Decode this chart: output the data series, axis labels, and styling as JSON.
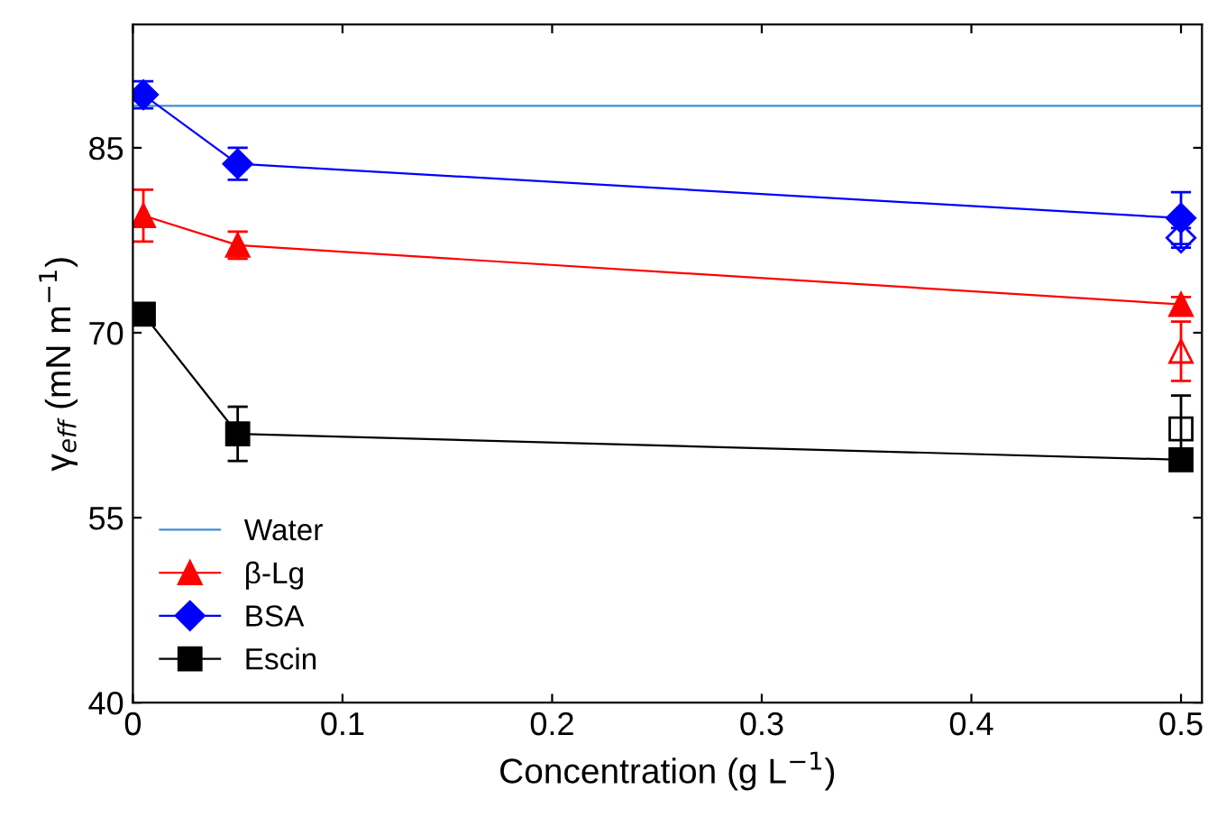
{
  "chart_data": {
    "type": "line",
    "xlabel": "Concentration (g L$^{−1}$)",
    "ylabel": "γ$_{eff}$ (mN m$^{−1}$)",
    "xlim": [
      0,
      0.51
    ],
    "ylim": [
      40,
      95
    ],
    "xticks": [
      0,
      0.1,
      0.2,
      0.3,
      0.4,
      0.5
    ],
    "yticks": [
      40,
      55,
      70,
      85
    ],
    "grid": false,
    "legend": "bottom left",
    "series": [
      {
        "name": "Water",
        "color": "#3d8fd6",
        "marker": "none",
        "x": [
          0,
          0.51
        ],
        "values": [
          88.4,
          88.4
        ]
      },
      {
        "name": "β-Lg",
        "color": "#ff0000",
        "marker": "triangle",
        "x": [
          0.005,
          0.05,
          0.5
        ],
        "values": [
          79.5,
          77.1,
          72.3
        ],
        "errors": [
          2.1,
          1.1,
          0.6
        ]
      },
      {
        "name": "BSA",
        "color": "#0000ff",
        "marker": "diamond",
        "x": [
          0.005,
          0.05,
          0.5
        ],
        "values": [
          89.3,
          83.7,
          79.3
        ],
        "errors": [
          1.1,
          1.3,
          2.1
        ]
      },
      {
        "name": "Escin",
        "color": "#000000",
        "marker": "square",
        "x": [
          0.005,
          0.05,
          0.5
        ],
        "values": [
          71.5,
          61.8,
          59.7
        ],
        "errors": [
          null,
          2.2,
          null
        ]
      },
      {
        "type": "scatter",
        "color": "#0000ff",
        "marker": "diamond",
        "x": [
          0.5
        ],
        "values": [
          77.7
        ],
        "errors": [
          0.8
        ]
      },
      {
        "type": "scatter",
        "color": "#ff0000",
        "marker": "triangle",
        "x": [
          0.5
        ],
        "values": [
          68.5
        ],
        "errors": [
          2.4
        ]
      },
      {
        "type": "scatter",
        "color": "#000000",
        "marker": "square",
        "x": [
          0.5
        ],
        "values": [
          62.2
        ],
        "errors": [
          2.7
        ]
      }
    ]
  }
}
